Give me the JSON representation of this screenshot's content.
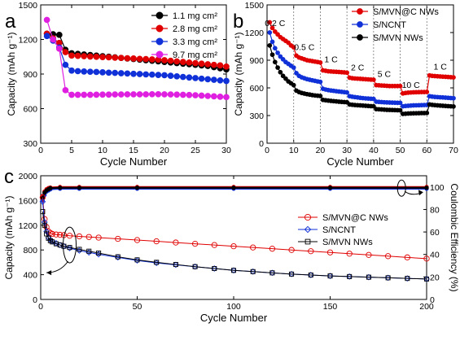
{
  "chart_data": [
    {
      "panel": "a",
      "type": "scatter",
      "xlabel": "Cycle Number",
      "ylabel": "Capacity (mAh g⁻¹)",
      "xlim": [
        0,
        30
      ],
      "ylim": [
        300,
        1500
      ],
      "xticks": [
        0,
        5,
        10,
        15,
        20,
        25,
        30
      ],
      "yticks": [
        300,
        600,
        900,
        1200,
        1500
      ],
      "legend_position": "top-right",
      "series": [
        {
          "name": "1.1 mg cm²",
          "color": "#000000",
          "x": [
            1,
            2,
            3,
            4,
            5,
            6,
            7,
            8,
            9,
            10,
            11,
            12,
            13,
            14,
            15,
            16,
            17,
            18,
            19,
            20,
            21,
            22,
            23,
            24,
            25,
            26,
            27,
            28,
            29,
            30
          ],
          "y": [
            1250,
            1245,
            1240,
            1110,
            1080,
            1075,
            1070,
            1065,
            1060,
            1055,
            1050,
            1045,
            1040,
            1035,
            1030,
            1025,
            1020,
            1015,
            1010,
            1005,
            1000,
            995,
            990,
            985,
            980,
            975,
            970,
            960,
            950,
            940
          ]
        },
        {
          "name": "2.8 mg cm²",
          "color": "#e00000",
          "x": [
            1,
            2,
            3,
            4,
            5,
            6,
            7,
            8,
            9,
            10,
            11,
            12,
            13,
            14,
            15,
            16,
            17,
            18,
            19,
            20,
            21,
            22,
            23,
            24,
            25,
            26,
            27,
            28,
            29,
            30
          ],
          "y": [
            1250,
            1210,
            1170,
            1090,
            1060,
            1058,
            1055,
            1052,
            1050,
            1047,
            1045,
            1042,
            1040,
            1037,
            1035,
            1032,
            1030,
            1027,
            1025,
            1020,
            1015,
            1010,
            1005,
            1000,
            995,
            990,
            985,
            980,
            975,
            965
          ]
        },
        {
          "name": "3.3 mg cm²",
          "color": "#1030d8",
          "x": [
            1,
            2,
            3,
            4,
            5,
            6,
            7,
            8,
            9,
            10,
            11,
            12,
            13,
            14,
            15,
            16,
            17,
            18,
            19,
            20,
            21,
            22,
            23,
            24,
            25,
            26,
            27,
            28,
            29,
            30
          ],
          "y": [
            1230,
            1190,
            1130,
            980,
            930,
            925,
            922,
            920,
            918,
            915,
            912,
            910,
            907,
            905,
            902,
            900,
            897,
            895,
            892,
            890,
            885,
            880,
            875,
            870,
            865,
            860,
            855,
            850,
            845,
            840
          ]
        },
        {
          "name": "9.7 mg cm²",
          "color": "#e020e0",
          "x": [
            1,
            2,
            3,
            4,
            5,
            6,
            7,
            8,
            9,
            10,
            11,
            12,
            13,
            14,
            15,
            16,
            17,
            18,
            19,
            20,
            21,
            22,
            23,
            24,
            25,
            26,
            27,
            28,
            29,
            30
          ],
          "y": [
            1370,
            1200,
            1120,
            760,
            720,
            720,
            720,
            720,
            721,
            722,
            722,
            723,
            723,
            724,
            724,
            724,
            724,
            725,
            725,
            724,
            723,
            722,
            720,
            718,
            716,
            713,
            710,
            707,
            703,
            700
          ]
        }
      ]
    },
    {
      "panel": "b",
      "type": "scatter",
      "xlabel": "Cycle Number",
      "ylabel": "Capacity (mAh g⁻¹)",
      "xlim": [
        0,
        70
      ],
      "ylim": [
        0,
        1500
      ],
      "xticks": [
        0,
        10,
        20,
        30,
        40,
        50,
        60,
        70
      ],
      "yticks": [
        0,
        300,
        600,
        900,
        1200,
        1500
      ],
      "legend_position": "top-right",
      "rate_separators": [
        10,
        20,
        30,
        40,
        50,
        60
      ],
      "rate_labels": [
        {
          "text": "0.2 C",
          "x": 3,
          "y": 1270
        },
        {
          "text": "0.5 C",
          "x": 14,
          "y": 1010
        },
        {
          "text": "1 C",
          "x": 24,
          "y": 880
        },
        {
          "text": "2 C",
          "x": 34,
          "y": 790
        },
        {
          "text": "5 C",
          "x": 44,
          "y": 720
        },
        {
          "text": "10 C",
          "x": 54,
          "y": 600
        },
        {
          "text": "1 C",
          "x": 65,
          "y": 800
        }
      ],
      "series": [
        {
          "name": "S/MVN@C NWs",
          "color": "#e00000",
          "x": [
            1,
            2,
            3,
            4,
            5,
            6,
            7,
            8,
            9,
            10,
            11,
            12,
            13,
            14,
            15,
            16,
            17,
            18,
            19,
            20,
            21,
            22,
            23,
            24,
            25,
            26,
            27,
            28,
            29,
            30,
            31,
            32,
            33,
            34,
            35,
            36,
            37,
            38,
            39,
            40,
            41,
            42,
            43,
            44,
            45,
            46,
            47,
            48,
            49,
            50,
            51,
            52,
            53,
            54,
            55,
            56,
            57,
            58,
            59,
            60,
            61,
            62,
            63,
            64,
            65,
            66,
            67,
            68,
            69,
            70
          ],
          "y": [
            1310,
            1250,
            1210,
            1180,
            1150,
            1130,
            1110,
            1090,
            1060,
            1040,
            950,
            930,
            920,
            910,
            900,
            895,
            890,
            885,
            880,
            875,
            790,
            785,
            780,
            778,
            776,
            774,
            772,
            770,
            768,
            765,
            710,
            705,
            702,
            700,
            698,
            696,
            694,
            692,
            690,
            688,
            630,
            628,
            626,
            624,
            622,
            620,
            620,
            620,
            620,
            620,
            540,
            545,
            548,
            550,
            552,
            553,
            554,
            555,
            555,
            556,
            735,
            730,
            728,
            726,
            724,
            722,
            720,
            718,
            716,
            714
          ]
        },
        {
          "name": "S/NCNT",
          "color": "#1030d8",
          "x": [
            1,
            2,
            3,
            4,
            5,
            6,
            7,
            8,
            9,
            10,
            11,
            12,
            13,
            14,
            15,
            16,
            17,
            18,
            19,
            20,
            21,
            22,
            23,
            24,
            25,
            26,
            27,
            28,
            29,
            30,
            31,
            32,
            33,
            34,
            35,
            36,
            37,
            38,
            39,
            40,
            41,
            42,
            43,
            44,
            45,
            46,
            47,
            48,
            49,
            50,
            51,
            52,
            53,
            54,
            55,
            56,
            57,
            58,
            59,
            60,
            61,
            62,
            63,
            64,
            65,
            66,
            67,
            68,
            69,
            70
          ],
          "y": [
            1200,
            1100,
            1030,
            980,
            940,
            910,
            880,
            860,
            840,
            820,
            760,
            730,
            715,
            705,
            695,
            688,
            682,
            676,
            670,
            665,
            590,
            582,
            576,
            572,
            568,
            564,
            560,
            557,
            554,
            550,
            510,
            504,
            500,
            496,
            492,
            489,
            486,
            484,
            482,
            480,
            450,
            448,
            446,
            444,
            442,
            441,
            440,
            439,
            438,
            438,
            400,
            404,
            406,
            408,
            410,
            411,
            412,
            413,
            414,
            415,
            510,
            505,
            502,
            500,
            498,
            496,
            494,
            492,
            490,
            488
          ]
        },
        {
          "name": "S/MVN NWs",
          "color": "#000000",
          "x": [
            1,
            2,
            3,
            4,
            5,
            6,
            7,
            8,
            9,
            10,
            11,
            12,
            13,
            14,
            15,
            16,
            17,
            18,
            19,
            20,
            21,
            22,
            23,
            24,
            25,
            26,
            27,
            28,
            29,
            30,
            31,
            32,
            33,
            34,
            35,
            36,
            37,
            38,
            39,
            40,
            41,
            42,
            43,
            44,
            45,
            46,
            47,
            48,
            49,
            50,
            51,
            52,
            53,
            54,
            55,
            56,
            57,
            58,
            59,
            60,
            61,
            62,
            63,
            64,
            65,
            66,
            67,
            68,
            69,
            70
          ],
          "y": [
            1060,
            960,
            880,
            820,
            770,
            730,
            700,
            670,
            650,
            630,
            570,
            555,
            545,
            538,
            532,
            527,
            522,
            518,
            515,
            512,
            470,
            466,
            462,
            459,
            456,
            453,
            450,
            448,
            446,
            444,
            420,
            417,
            414,
            412,
            410,
            408,
            406,
            404,
            402,
            400,
            370,
            368,
            366,
            364,
            362,
            361,
            360,
            359,
            358,
            357,
            318,
            320,
            322,
            323,
            324,
            325,
            326,
            327,
            327,
            328,
            420,
            416,
            413,
            410,
            408,
            406,
            404,
            402,
            400,
            398
          ]
        }
      ]
    },
    {
      "panel": "c",
      "type": "scatter",
      "xlabel": "Cycle Number",
      "ylabel": "Capacity (mAh g⁻¹)",
      "y2label": "Coulombic Efficiency (%)",
      "xlim": [
        0,
        200
      ],
      "ylim": [
        0,
        2000
      ],
      "y2lim": [
        0,
        110
      ],
      "xticks": [
        0,
        50,
        100,
        150,
        200
      ],
      "yticks": [
        0,
        400,
        800,
        1200,
        1600,
        2000
      ],
      "y2ticks": [
        0,
        20,
        40,
        60,
        80,
        100
      ],
      "legend_position": "center-right",
      "capacity_series": [
        {
          "name": "S/MVN@C NWs",
          "color": "#e00000",
          "marker": "circle",
          "x": [
            1,
            2,
            3,
            4,
            5,
            6,
            8,
            10,
            12,
            15,
            20,
            25,
            30,
            40,
            50,
            60,
            70,
            80,
            90,
            100,
            110,
            120,
            130,
            140,
            150,
            160,
            170,
            180,
            190,
            200
          ],
          "y": [
            1650,
            1300,
            1170,
            1100,
            1075,
            1060,
            1050,
            1045,
            1040,
            1030,
            1020,
            1010,
            1000,
            980,
            960,
            940,
            920,
            900,
            880,
            860,
            840,
            820,
            800,
            780,
            760,
            740,
            720,
            700,
            680,
            660
          ]
        },
        {
          "name": "S/NCNT",
          "color": "#1030d8",
          "marker": "diamond",
          "x": [
            1,
            2,
            3,
            4,
            5,
            6,
            8,
            10,
            12,
            15,
            20,
            25,
            30,
            40,
            50,
            60,
            70,
            80,
            90,
            100,
            110,
            120,
            130,
            140,
            150,
            160,
            170,
            180,
            190,
            200
          ],
          "y": [
            1580,
            1250,
            1100,
            1000,
            960,
            940,
            910,
            880,
            860,
            830,
            790,
            760,
            730,
            680,
            630,
            590,
            560,
            530,
            500,
            470,
            450,
            430,
            410,
            395,
            380,
            370,
            360,
            350,
            340,
            330
          ]
        },
        {
          "name": "S/MVN NWs",
          "color": "#000000",
          "marker": "square",
          "x": [
            1,
            2,
            3,
            4,
            5,
            6,
            8,
            10,
            12,
            15,
            20,
            25,
            30,
            40,
            50,
            60,
            70,
            80,
            90,
            100,
            110,
            120,
            130,
            140,
            150,
            160,
            170,
            180,
            190,
            200
          ],
          "y": [
            1420,
            1200,
            1060,
            990,
            950,
            930,
            900,
            880,
            860,
            840,
            810,
            780,
            750,
            690,
            640,
            600,
            565,
            530,
            500,
            470,
            450,
            430,
            410,
            395,
            380,
            370,
            360,
            350,
            340,
            330
          ]
        }
      ],
      "efficiency_series": [
        {
          "name": "S/MVN@C NWs",
          "color": "#e00000",
          "x": [
            1,
            2,
            3,
            4,
            5,
            10,
            20,
            50,
            100,
            150,
            200
          ],
          "y": [
            92,
            96,
            98,
            99,
            99.5,
            100,
            100,
            100,
            100,
            100,
            100
          ]
        },
        {
          "name": "S/NCNT",
          "color": "#1030d8",
          "x": [
            1,
            2,
            3,
            4,
            5,
            10,
            20,
            50,
            100,
            150,
            200
          ],
          "y": [
            88,
            93,
            96,
            97,
            98,
            98.5,
            98.5,
            98.5,
            98.5,
            98.5,
            98.5
          ]
        },
        {
          "name": "S/MVN NWs",
          "color": "#000000",
          "x": [
            1,
            2,
            3,
            4,
            5,
            10,
            20,
            50,
            100,
            150,
            200
          ],
          "y": [
            90,
            95,
            97,
            98,
            99,
            99.3,
            99.3,
            99.3,
            99.3,
            99.3,
            99.3
          ]
        }
      ]
    }
  ]
}
